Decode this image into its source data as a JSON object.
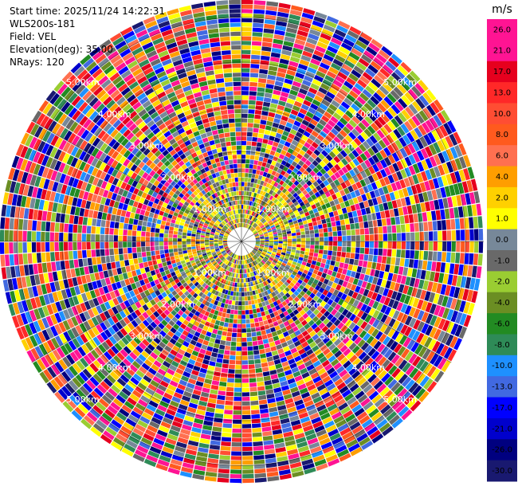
{
  "header": {
    "start_time": "Start time: 2025/11/24 14:22:31",
    "instrument": "WLS200s-181",
    "field": "Field: VEL",
    "elevation": "Elevation(deg): 35.00",
    "nrays": "NRays: 120"
  },
  "chart_data": {
    "type": "heatmap",
    "projection": "polar-ppi",
    "field": "VEL",
    "units": "m/s",
    "elevation_deg": 35.0,
    "n_rays": 120,
    "max_range_km": 5.4,
    "range_ring_labels": [
      "1.00km",
      "2.00km",
      "3.00km",
      "4.00km",
      "5.00km"
    ],
    "range_ring_km": [
      1,
      2,
      3,
      4,
      5
    ],
    "colorbar": {
      "title": "m/s",
      "ticks": [
        "26.0",
        "21.0",
        "17.0",
        "13.0",
        "10.0",
        "8.0",
        "6.0",
        "4.0",
        "2.0",
        "1.0",
        "0.0",
        "-1.0",
        "-2.0",
        "-4.0",
        "-6.0",
        "-8.0",
        "-10.0",
        "-13.0",
        "-17.0",
        "-21.0",
        "-26.0",
        "-30.0"
      ],
      "colors": [
        "#ff1493",
        "#ff1493",
        "#e6001e",
        "#ff2828",
        "#ff4d33",
        "#ff5a1e",
        "#ff7050",
        "#ff9e00",
        "#ffd000",
        "#ffff00",
        "#778899",
        "#696969",
        "#9acd32",
        "#6b8e23",
        "#228b22",
        "#2e8b57",
        "#1e90ff",
        "#4169e1",
        "#0000ff",
        "#0000cd",
        "#000080",
        "#191970"
      ]
    }
  }
}
